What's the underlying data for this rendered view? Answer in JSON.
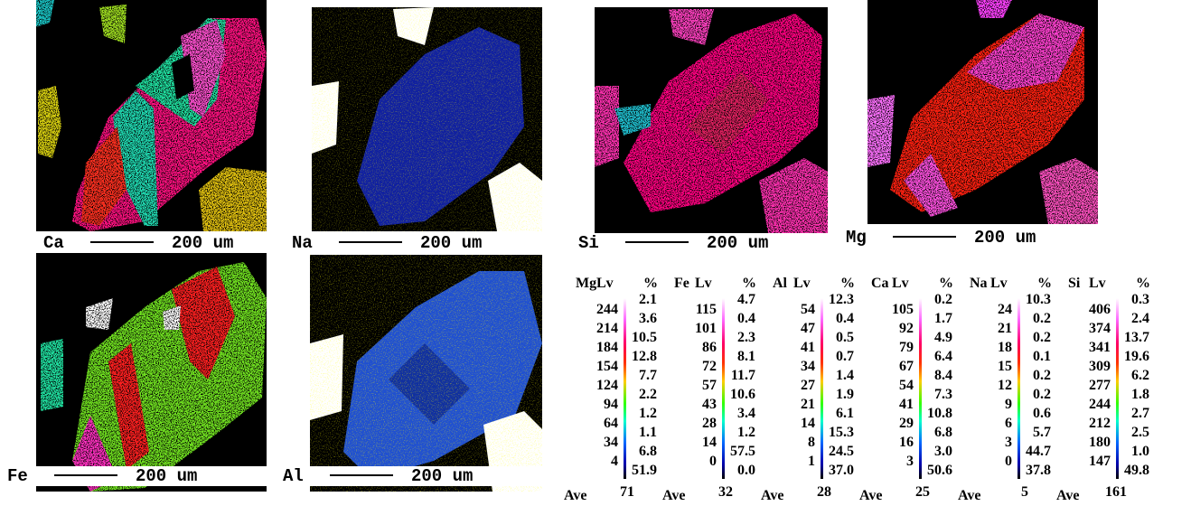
{
  "maps": [
    {
      "element": "Ca",
      "scale": "200 um"
    },
    {
      "element": "Na",
      "scale": "200 um"
    },
    {
      "element": "Si",
      "scale": "200 um"
    },
    {
      "element": "Mg",
      "scale": "200 um"
    },
    {
      "element": "Fe",
      "scale": "200 um"
    },
    {
      "element": "Al",
      "scale": "200 um"
    }
  ],
  "legends": [
    {
      "element": "Mg",
      "lv": "Lv",
      "pct": "%",
      "levels": [
        "244",
        "214",
        "184",
        "154",
        "124",
        "94",
        "64",
        "34",
        "4"
      ],
      "percents": [
        "2.1",
        "3.6",
        "10.5",
        "12.8",
        "7.7",
        "2.2",
        "1.2",
        "1.1",
        "6.8",
        "51.9"
      ],
      "ave_label": "Ave",
      "ave": "71"
    },
    {
      "element": "Fe",
      "lv": "Lv",
      "pct": "%",
      "levels": [
        "115",
        "101",
        "86",
        "72",
        "57",
        "43",
        "28",
        "14",
        "0"
      ],
      "percents": [
        "4.7",
        "0.4",
        "2.3",
        "8.1",
        "11.7",
        "10.6",
        "3.4",
        "1.2",
        "57.5",
        "0.0"
      ],
      "ave_label": "Ave",
      "ave": "32"
    },
    {
      "element": "Al",
      "lv": "Lv",
      "pct": "%",
      "levels": [
        "54",
        "47",
        "41",
        "34",
        "27",
        "21",
        "14",
        "8",
        "1"
      ],
      "percents": [
        "12.3",
        "0.4",
        "0.5",
        "0.7",
        "1.4",
        "1.9",
        "6.1",
        "15.3",
        "24.5",
        "37.0"
      ],
      "ave_label": "Ave",
      "ave": "28"
    },
    {
      "element": "Ca",
      "lv": "Lv",
      "pct": "%",
      "levels": [
        "105",
        "92",
        "79",
        "67",
        "54",
        "41",
        "29",
        "16",
        "3"
      ],
      "percents": [
        "0.2",
        "1.7",
        "4.9",
        "6.4",
        "8.4",
        "7.3",
        "10.8",
        "6.8",
        "3.0",
        "50.6"
      ],
      "ave_label": "Ave",
      "ave": "25"
    },
    {
      "element": "Na",
      "lv": "Lv",
      "pct": "%",
      "levels": [
        "24",
        "21",
        "18",
        "15",
        "12",
        "9",
        "6",
        "3",
        "0"
      ],
      "percents": [
        "10.3",
        "0.2",
        "0.2",
        "0.1",
        "0.2",
        "0.2",
        "0.6",
        "5.7",
        "44.7",
        "37.8"
      ],
      "ave_label": "Ave",
      "ave": "5"
    },
    {
      "element": "Si",
      "lv": "Lv",
      "pct": "%",
      "levels": [
        "406",
        "374",
        "341",
        "309",
        "277",
        "244",
        "212",
        "180",
        "147"
      ],
      "percents": [
        "0.3",
        "2.4",
        "13.7",
        "19.6",
        "6.2",
        "1.8",
        "2.7",
        "2.5",
        "1.0",
        "49.8"
      ],
      "ave_label": "Ave",
      "ave": "161"
    }
  ]
}
